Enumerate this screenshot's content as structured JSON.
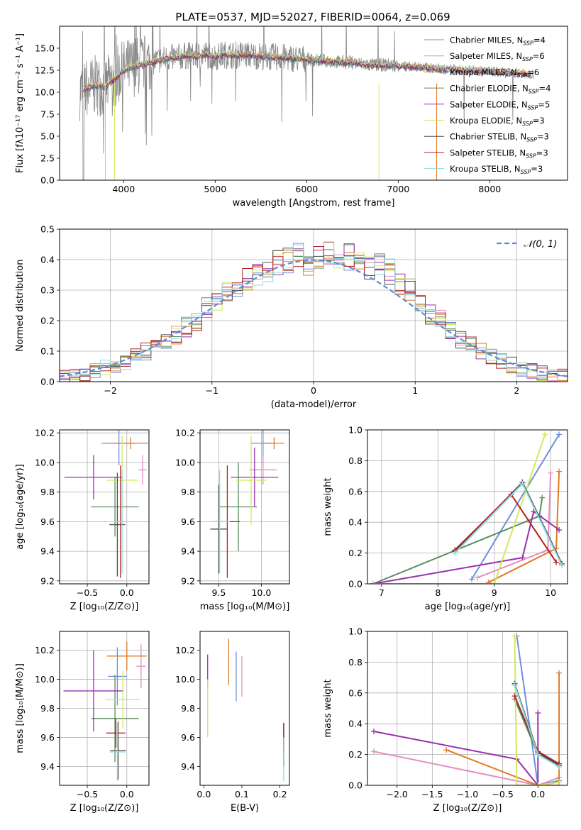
{
  "figure": {
    "title": "PLATE=0537, MJD=52027, FIBERID=0064, z=0.069"
  },
  "colors": {
    "series": [
      "#6d8fdd",
      "#e58dc0",
      "#e07a28",
      "#5a8c5e",
      "#9a2fae",
      "#d4e85c",
      "#4d4d4d",
      "#b22222",
      "#8fd9df"
    ],
    "data_spectrum": "#888888",
    "normal_curve": "#5b8bd8"
  },
  "chart_data": [
    {
      "id": "spectrum",
      "type": "line",
      "xlabel": "wavelength [Angstrom, rest frame]",
      "ylabel": "Flux [fλ10⁻¹⁷ erg cm⁻² s⁻¹ A⁻¹]",
      "xlim": [
        3300,
        8850
      ],
      "ylim": [
        0,
        17.5
      ],
      "xticks": [
        4000,
        5000,
        6000,
        7000,
        8000
      ],
      "yticks": [
        0.0,
        2.5,
        5.0,
        7.5,
        10.0,
        12.5,
        15.0
      ],
      "legend_position": "top-right",
      "x": [
        3550,
        3600,
        3700,
        3800,
        3900,
        4000,
        4100,
        4200,
        4300,
        4400,
        4500,
        4600,
        4700,
        4800,
        4900,
        5000,
        5100,
        5200,
        5300,
        5400,
        5500,
        5600,
        5700,
        5800,
        5900,
        6000,
        6100,
        6200,
        6300,
        6400,
        6500,
        6600,
        6700,
        6800,
        6900,
        7000,
        7100,
        7200,
        7300,
        7400,
        7500,
        7600,
        7700,
        7800,
        7900,
        8000,
        8100,
        8200,
        8300,
        8400
      ],
      "model_flux": [
        10.2,
        10.5,
        10.8,
        10.6,
        11.5,
        12.5,
        12.9,
        13.1,
        13.4,
        13.7,
        13.9,
        14.0,
        14.2,
        14.1,
        14.3,
        14.0,
        14.3,
        14.2,
        14.3,
        14.2,
        14.1,
        14.0,
        14.0,
        13.9,
        13.8,
        13.8,
        13.6,
        13.6,
        13.5,
        13.4,
        13.4,
        13.2,
        13.1,
        13.1,
        13.1,
        13.0,
        12.9,
        12.9,
        12.8,
        12.7,
        12.6,
        12.6,
        12.5,
        12.5,
        12.4,
        12.4,
        12.3,
        12.2,
        12.2,
        12.1
      ],
      "series": [
        {
          "name": "Chabrier MILES, N",
          "nssp": "=4"
        },
        {
          "name": "Salpeter MILES, N",
          "nssp": "=6"
        },
        {
          "name": "Kroupa MILES, N",
          "nssp": "=6"
        },
        {
          "name": "Chabrier ELODIE, N",
          "nssp": "=4"
        },
        {
          "name": "Salpeter ELODIE, N",
          "nssp": "=5"
        },
        {
          "name": "Kroupa ELODIE, N",
          "nssp": "=3"
        },
        {
          "name": "Chabrier STELIB, N",
          "nssp": "=3"
        },
        {
          "name": "Salpeter STELIB, N",
          "nssp": "=3"
        },
        {
          "name": "Kroupa STELIB, N",
          "nssp": "=3"
        }
      ],
      "nssp_subscript": "SSP"
    },
    {
      "id": "residuals",
      "type": "line",
      "xlabel": "(data-model)/error",
      "ylabel": "Normed distribution",
      "xlim": [
        -2.5,
        2.5
      ],
      "ylim": [
        0,
        0.5
      ],
      "xticks": [
        -2,
        -1,
        0,
        1,
        2
      ],
      "xtick_labels": [
        "−2",
        "−1",
        "0",
        "1",
        "2"
      ],
      "yticks": [
        0.0,
        0.1,
        0.2,
        0.3,
        0.4,
        0.5
      ],
      "grid": true,
      "legend_position": "top-right",
      "legend": "𝒩(0, 1)",
      "bin_edges": [
        -2.5,
        -2.4,
        -2.3,
        -2.2,
        -2.1,
        -2.0,
        -1.9,
        -1.8,
        -1.7,
        -1.6,
        -1.5,
        -1.4,
        -1.3,
        -1.2,
        -1.1,
        -1.0,
        -0.9,
        -0.8,
        -0.7,
        -0.6,
        -0.5,
        -0.4,
        -0.3,
        -0.2,
        -0.1,
        0.0,
        0.1,
        0.2,
        0.3,
        0.4,
        0.5,
        0.6,
        0.7,
        0.8,
        0.9,
        1.0,
        1.1,
        1.2,
        1.3,
        1.4,
        1.5,
        1.6,
        1.7,
        1.8,
        1.9,
        2.0,
        2.1,
        2.2,
        2.3,
        2.4,
        2.5
      ],
      "hist_base": [
        0.018,
        0.022,
        0.028,
        0.035,
        0.045,
        0.052,
        0.065,
        0.08,
        0.1,
        0.11,
        0.13,
        0.15,
        0.18,
        0.2,
        0.24,
        0.27,
        0.29,
        0.31,
        0.33,
        0.35,
        0.37,
        0.39,
        0.4,
        0.41,
        0.38,
        0.4,
        0.42,
        0.4,
        0.41,
        0.4,
        0.38,
        0.39,
        0.36,
        0.32,
        0.3,
        0.25,
        0.22,
        0.2,
        0.17,
        0.14,
        0.12,
        0.1,
        0.08,
        0.07,
        0.055,
        0.045,
        0.038,
        0.03,
        0.025,
        0.02
      ]
    },
    {
      "id": "age-vs-Z",
      "type": "scatter",
      "xlabel": "Z [log₁₀(Z/Z⊙)]",
      "ylabel": "age  [log₁₀(age/yr)]",
      "xlim": [
        -0.85,
        0.28
      ],
      "ylim": [
        9.18,
        10.22
      ],
      "xticks": [
        -0.5,
        0.0
      ],
      "xtick_labels": [
        "−0.5",
        "0.0"
      ],
      "yticks": [
        9.2,
        9.4,
        9.6,
        9.8,
        10.0,
        10.2
      ],
      "grid": true,
      "points": [
        {
          "x": -0.1,
          "y": 10.13,
          "xerr": 0.22,
          "yerr": 0.15,
          "c": 0
        },
        {
          "x": 0.2,
          "y": 9.95,
          "xerr": 0.05,
          "yerr": 0.1,
          "c": 1
        },
        {
          "x": 0.05,
          "y": 10.13,
          "xerr": 0.22,
          "yerr": 0.04,
          "c": 2
        },
        {
          "x": -0.15,
          "y": 9.7,
          "xerr": 0.3,
          "yerr": 0.2,
          "c": 3
        },
        {
          "x": -0.42,
          "y": 9.9,
          "xerr": 0.37,
          "yerr": 0.15,
          "c": 4
        },
        {
          "x": -0.06,
          "y": 9.88,
          "xerr": 0.2,
          "yerr": 0.3,
          "c": 5
        },
        {
          "x": -0.12,
          "y": 9.58,
          "xerr": 0.1,
          "yerr": 0.35,
          "c": 6
        },
        {
          "x": -0.08,
          "y": 9.6,
          "xerr": 0.04,
          "yerr": 0.38,
          "c": 7
        },
        {
          "x": -0.06,
          "y": 9.6,
          "xerr": 0.1,
          "yerr": 0.35,
          "c": 8
        }
      ]
    },
    {
      "id": "age-vs-mass",
      "type": "scatter",
      "xlabel": "mass [log₁₀(M/M⊙)]",
      "xlim": [
        9.28,
        10.33
      ],
      "ylim": [
        9.18,
        10.22
      ],
      "xticks": [
        9.5,
        10.0
      ],
      "yticks": [
        9.2,
        9.4,
        9.6,
        9.8,
        10.0,
        10.2
      ],
      "grid": true,
      "points": [
        {
          "x": 10.02,
          "y": 10.13,
          "xerr": 0.14,
          "yerr": 0.15,
          "c": 0
        },
        {
          "x": 10.02,
          "y": 9.95,
          "xerr": 0.16,
          "yerr": 0.1,
          "c": 1
        },
        {
          "x": 10.15,
          "y": 10.13,
          "xerr": 0.12,
          "yerr": 0.04,
          "c": 2
        },
        {
          "x": 9.73,
          "y": 9.7,
          "xerr": 0.22,
          "yerr": 0.3,
          "c": 3
        },
        {
          "x": 9.92,
          "y": 9.9,
          "xerr": 0.28,
          "yerr": 0.2,
          "c": 4
        },
        {
          "x": 9.88,
          "y": 9.88,
          "xerr": 0.18,
          "yerr": 0.3,
          "c": 5
        },
        {
          "x": 9.5,
          "y": 9.55,
          "xerr": 0.1,
          "yerr": 0.3,
          "c": 6
        },
        {
          "x": 9.6,
          "y": 9.6,
          "xerr": 0.15,
          "yerr": 0.38,
          "c": 7
        },
        {
          "x": 9.51,
          "y": 9.6,
          "xerr": 0.12,
          "yerr": 0.35,
          "c": 8
        }
      ]
    },
    {
      "id": "mass-weight-vs-age",
      "type": "line",
      "xlabel": "age  [log₁₀(age/yr)]",
      "ylabel": "mass weight",
      "xlim": [
        6.75,
        10.3
      ],
      "ylim": [
        0,
        1.0
      ],
      "xticks": [
        7,
        8,
        9,
        10
      ],
      "yticks": [
        0.0,
        0.2,
        0.4,
        0.6,
        0.8,
        1.0
      ],
      "grid": true,
      "series": [
        {
          "c": 0,
          "x": [
            8.6,
            10.15
          ],
          "y": [
            0.03,
            0.97
          ]
        },
        {
          "c": 1,
          "x": [
            8.7,
            9.95,
            10.0
          ],
          "y": [
            0.04,
            0.22,
            0.72
          ]
        },
        {
          "c": 2,
          "x": [
            8.9,
            10.1,
            10.15
          ],
          "y": [
            0.01,
            0.23,
            0.73
          ]
        },
        {
          "c": 3,
          "x": [
            6.85,
            9.8,
            9.85
          ],
          "y": [
            0.0,
            0.44,
            0.56
          ]
        },
        {
          "c": 4,
          "x": [
            6.85,
            9.5,
            9.7,
            10.15
          ],
          "y": [
            0.0,
            0.17,
            0.47,
            0.35
          ]
        },
        {
          "c": 5,
          "x": [
            6.85,
            9.0,
            9.9
          ],
          "y": [
            0.0,
            0.0,
            0.97
          ]
        },
        {
          "c": 6,
          "x": [
            8.3,
            9.5,
            10.2
          ],
          "y": [
            0.21,
            0.66,
            0.13
          ]
        },
        {
          "c": 7,
          "x": [
            8.3,
            9.3,
            10.1
          ],
          "y": [
            0.22,
            0.58,
            0.14
          ]
        },
        {
          "c": 8,
          "x": [
            8.3,
            9.5,
            10.2
          ],
          "y": [
            0.2,
            0.65,
            0.12
          ]
        }
      ]
    },
    {
      "id": "mass-vs-Z",
      "type": "scatter",
      "xlabel": "Z [log₁₀(Z/Z⊙)]",
      "ylabel": "mass [log₁₀(M/M⊙)]",
      "xlim": [
        -0.85,
        0.28
      ],
      "ylim": [
        9.27,
        10.33
      ],
      "xticks": [
        -0.5,
        0.0
      ],
      "xtick_labels": [
        "−0.5",
        "0.0"
      ],
      "yticks": [
        9.4,
        9.6,
        9.8,
        10.0,
        10.2
      ],
      "grid": true,
      "points": [
        {
          "x": -0.12,
          "y": 10.02,
          "xerr": 0.12,
          "yerr": 0.2,
          "c": 0
        },
        {
          "x": 0.18,
          "y": 10.09,
          "xerr": 0.06,
          "yerr": 0.15,
          "c": 1
        },
        {
          "x": 0.0,
          "y": 10.16,
          "xerr": 0.25,
          "yerr": 0.1,
          "c": 2
        },
        {
          "x": -0.15,
          "y": 9.73,
          "xerr": 0.3,
          "yerr": 0.3,
          "c": 3
        },
        {
          "x": -0.42,
          "y": 9.92,
          "xerr": 0.38,
          "yerr": 0.28,
          "c": 4
        },
        {
          "x": -0.05,
          "y": 9.86,
          "xerr": 0.22,
          "yerr": 0.2,
          "c": 5
        },
        {
          "x": -0.11,
          "y": 9.51,
          "xerr": 0.1,
          "yerr": 0.2,
          "c": 6
        },
        {
          "x": -0.14,
          "y": 9.63,
          "xerr": 0.12,
          "yerr": 0.1,
          "c": 7
        },
        {
          "x": -0.12,
          "y": 9.5,
          "xerr": 0.1,
          "yerr": 0.2,
          "c": 8
        }
      ]
    },
    {
      "id": "mass-vs-ebv",
      "type": "scatter",
      "xlabel": "E(B-V)",
      "xlim": [
        -0.01,
        0.225
      ],
      "ylim": [
        9.27,
        10.33
      ],
      "xticks": [
        0.0,
        0.1,
        0.2
      ],
      "yticks": [
        9.4,
        9.6,
        9.8,
        10.0,
        10.2
      ],
      "points": [
        {
          "x": 0.085,
          "y": 10.02,
          "xerr": 0,
          "yerr": 0.17,
          "c": 0
        },
        {
          "x": 0.1,
          "y": 10.02,
          "xerr": 0,
          "yerr": 0.14,
          "c": 1
        },
        {
          "x": 0.065,
          "y": 10.12,
          "xerr": 0,
          "yerr": 0.16,
          "c": 2
        },
        {
          "x": 0.21,
          "y": 9.55,
          "xerr": 0,
          "yerr": 0.15,
          "c": 3
        },
        {
          "x": 0.01,
          "y": 10.05,
          "xerr": 0,
          "yerr": 0.12,
          "c": 4
        },
        {
          "x": 0.01,
          "y": 9.8,
          "xerr": 0,
          "yerr": 0.2,
          "c": 5
        },
        {
          "x": 0.21,
          "y": 9.55,
          "xerr": 0,
          "yerr": 0.15,
          "c": 6
        },
        {
          "x": 0.21,
          "y": 9.6,
          "xerr": 0,
          "yerr": 0.1,
          "c": 7
        },
        {
          "x": 0.21,
          "y": 9.45,
          "xerr": 0,
          "yerr": 0.15,
          "c": 8
        }
      ]
    },
    {
      "id": "mass-weight-vs-Z",
      "type": "line",
      "xlabel": "Z [log₁₀(Z/Z⊙)]",
      "ylabel": "mass weight",
      "xlim": [
        -2.42,
        0.42
      ],
      "ylim": [
        0,
        1.0
      ],
      "xticks": [
        -2.0,
        -1.5,
        -1.0,
        -0.5,
        0.0
      ],
      "xtick_labels": [
        "−2.0",
        "−1.5",
        "−1.0",
        "−0.5",
        "0.0"
      ],
      "yticks": [
        0.0,
        0.2,
        0.4,
        0.6,
        0.8,
        1.0
      ],
      "grid": true,
      "series": [
        {
          "c": 0,
          "x": [
            -0.3,
            0.0,
            0.3
          ],
          "y": [
            0.97,
            0.0,
            0.03
          ]
        },
        {
          "c": 1,
          "x": [
            -2.33,
            0.0,
            0.3
          ],
          "y": [
            0.22,
            0.0,
            0.05
          ]
        },
        {
          "c": 2,
          "x": [
            -1.3,
            0.0,
            0.3,
            0.3
          ],
          "y": [
            0.23,
            0.0,
            0.0,
            0.73
          ]
        },
        {
          "c": 3,
          "x": [
            -0.33,
            0.0,
            0.3
          ],
          "y": [
            0.56,
            0.2,
            0.14
          ]
        },
        {
          "c": 4,
          "x": [
            -2.33,
            -0.3,
            0.0,
            0.0
          ],
          "y": [
            0.35,
            0.17,
            0.0,
            0.47
          ]
        },
        {
          "c": 5,
          "x": [
            -0.33,
            -0.3,
            0.0,
            0.3
          ],
          "y": [
            0.97,
            0.0,
            0.0,
            0.02
          ]
        },
        {
          "c": 6,
          "x": [
            -0.33,
            0.0,
            0.3
          ],
          "y": [
            0.66,
            0.21,
            0.13
          ]
        },
        {
          "c": 7,
          "x": [
            -0.33,
            0.0,
            0.3
          ],
          "y": [
            0.58,
            0.22,
            0.14
          ]
        },
        {
          "c": 8,
          "x": [
            -0.33,
            0.0,
            0.3
          ],
          "y": [
            0.65,
            0.2,
            0.12
          ]
        }
      ]
    }
  ]
}
